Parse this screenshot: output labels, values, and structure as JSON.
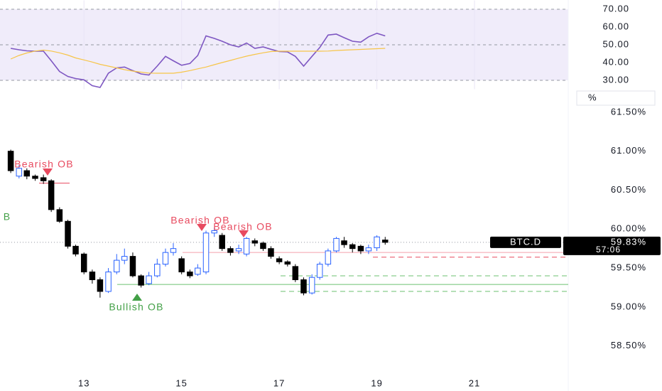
{
  "chart_data": [
    {
      "type": "line",
      "x": [
        11.5,
        11.67,
        11.83,
        12,
        12.17,
        12.33,
        12.5,
        12.67,
        12.83,
        13,
        13.17,
        13.33,
        13.5,
        13.67,
        13.83,
        14,
        14.17,
        14.33,
        14.5,
        14.67,
        14.83,
        15,
        15.17,
        15.33,
        15.5,
        15.67,
        15.83,
        16,
        16.17,
        16.33,
        16.5,
        16.67,
        16.83,
        17,
        17.17,
        17.33,
        17.5,
        17.67,
        17.83,
        18,
        18.17,
        18.33,
        18.5,
        18.67,
        18.83,
        19,
        19.17
      ],
      "series": [
        {
          "color": "#7e57c2",
          "values": [
            48,
            47.2,
            46.6,
            46.4,
            46.4,
            41,
            35,
            32.2,
            31,
            30.3,
            27,
            26,
            34,
            37,
            37.5,
            35.5,
            33.6,
            33,
            38,
            43.5,
            41,
            38.5,
            39.5,
            44,
            55,
            53.6,
            52,
            50,
            48.8,
            51,
            48,
            48.8,
            47.5,
            46.2,
            46,
            43.5,
            38,
            43.5,
            48.5,
            55.5,
            56,
            54,
            52,
            51.5,
            54.5,
            56.5,
            55
          ]
        },
        {
          "color": "#f7c548",
          "values": [
            42,
            44,
            45.4,
            46.5,
            47,
            46.5,
            45.5,
            44.2,
            42.6,
            41.5,
            40.3,
            39,
            38,
            37,
            36,
            35.2,
            34.6,
            34.1,
            34,
            34,
            34,
            34.6,
            35.5,
            36.5,
            37.5,
            38.8,
            40,
            41.2,
            42.5,
            43.6,
            44.6,
            45.5,
            46.2,
            46.4,
            46.4,
            46.4,
            46.4,
            46.4,
            46.4,
            46.5,
            46.8,
            47,
            47.2,
            47.4,
            47.6,
            47.8,
            48
          ]
        }
      ],
      "xlim": [
        11.28,
        22.92
      ],
      "ylim": [
        25,
        75
      ],
      "yticks": [
        {
          "value": 30,
          "label": "30.00"
        },
        {
          "value": 40,
          "label": "40.00"
        },
        {
          "value": 50,
          "label": "50.00"
        },
        {
          "value": 60,
          "label": "60.00"
        },
        {
          "value": 70,
          "label": "70.00"
        }
      ],
      "band": [
        30,
        70
      ],
      "midline": 50,
      "band_color": "#f0ecfa"
    },
    {
      "type": "candlestick",
      "x": [
        11.5,
        11.67,
        11.83,
        12,
        12.17,
        12.33,
        12.5,
        12.67,
        12.83,
        13,
        13.17,
        13.33,
        13.5,
        13.67,
        13.83,
        14,
        14.17,
        14.33,
        14.5,
        14.67,
        14.83,
        15,
        15.17,
        15.33,
        15.5,
        15.67,
        15.83,
        16,
        16.17,
        16.33,
        16.5,
        16.67,
        16.83,
        17,
        17.17,
        17.33,
        17.5,
        17.67,
        17.83,
        18,
        18.17,
        18.33,
        18.5,
        18.67,
        18.83,
        19,
        19.17
      ],
      "open": [
        61.0,
        60.68,
        60.75,
        60.68,
        60.66,
        60.62,
        60.25,
        60.1,
        59.78,
        59.68,
        59.45,
        59.35,
        59.2,
        59.45,
        59.6,
        59.65,
        59.4,
        59.3,
        59.4,
        59.55,
        59.7,
        59.62,
        59.45,
        59.42,
        59.45,
        59.95,
        59.92,
        59.75,
        59.72,
        59.68,
        59.85,
        59.82,
        59.75,
        59.62,
        59.58,
        59.52,
        59.35,
        59.18,
        59.38,
        59.55,
        59.72,
        59.85,
        59.8,
        59.78,
        59.72,
        59.76,
        59.86
      ],
      "high": [
        61.02,
        60.82,
        60.78,
        60.7,
        60.7,
        60.64,
        60.28,
        60.12,
        59.8,
        59.7,
        59.48,
        59.38,
        59.5,
        59.68,
        59.75,
        59.7,
        59.42,
        59.45,
        59.62,
        59.75,
        59.82,
        59.65,
        59.48,
        59.55,
        59.98,
        60.02,
        59.95,
        59.78,
        59.8,
        59.9,
        59.88,
        59.84,
        59.78,
        59.65,
        59.6,
        59.55,
        59.38,
        59.42,
        59.58,
        59.75,
        59.9,
        59.9,
        59.82,
        59.8,
        59.8,
        59.92,
        59.9
      ],
      "low": [
        60.72,
        60.65,
        60.64,
        60.62,
        60.58,
        60.22,
        60.08,
        59.75,
        59.65,
        59.42,
        59.3,
        59.12,
        59.18,
        59.42,
        59.55,
        59.38,
        59.25,
        59.28,
        59.38,
        59.52,
        59.66,
        59.42,
        59.37,
        59.4,
        59.42,
        59.9,
        59.72,
        59.66,
        59.68,
        59.65,
        59.78,
        59.72,
        59.62,
        59.55,
        59.52,
        59.32,
        59.15,
        59.16,
        59.35,
        59.52,
        59.7,
        59.76,
        59.7,
        59.68,
        59.68,
        59.72,
        59.8
      ],
      "close": [
        60.75,
        60.78,
        60.68,
        60.65,
        60.62,
        60.25,
        60.1,
        59.78,
        59.68,
        59.45,
        59.35,
        59.2,
        59.45,
        59.6,
        59.65,
        59.4,
        59.28,
        59.4,
        59.55,
        59.7,
        59.75,
        59.45,
        59.4,
        59.5,
        59.95,
        59.98,
        59.75,
        59.7,
        59.75,
        59.88,
        59.82,
        59.75,
        59.65,
        59.58,
        59.55,
        59.35,
        59.18,
        59.38,
        59.55,
        59.72,
        59.88,
        59.8,
        59.75,
        59.72,
        59.76,
        59.9,
        59.83
      ],
      "up_color": "#2962ff",
      "down_color": "#000000",
      "xlim": [
        11.28,
        22.92
      ],
      "xticks": [
        13,
        15,
        17,
        19,
        21
      ],
      "ylim": [
        58.15,
        61.8
      ],
      "yticks": [
        {
          "value": 58.5,
          "label": "58.50%"
        },
        {
          "value": 59,
          "label": "59.00%"
        },
        {
          "value": 59.5,
          "label": "59.50%"
        },
        {
          "value": 60,
          "label": "60.00%"
        },
        {
          "value": 60.5,
          "label": "60.50%"
        },
        {
          "value": 61,
          "label": "61.00%"
        },
        {
          "value": 61.5,
          "label": "61.50%"
        }
      ],
      "axis_unit": "%",
      "levels": [
        {
          "value": 60.59,
          "color": "#e84a5f",
          "dash": false
        },
        {
          "value": 59.7,
          "color": "#f4a0ab",
          "dash": false
        },
        {
          "value": 59.64,
          "color": "#e84a5f",
          "dash": true
        },
        {
          "value": 59.4,
          "color": "#6cc070",
          "dash": true
        },
        {
          "value": 59.29,
          "color": "#6cc070",
          "dash": false
        },
        {
          "value": 59.2,
          "color": "#6cc070",
          "dash": true
        }
      ],
      "annotations": [
        {
          "text": "Bearish OB",
          "color": "#e84a5f"
        },
        {
          "text": "Bearish OB",
          "color": "#e84a5f"
        },
        {
          "text": "Bearish OB",
          "color": "#e84a5f"
        },
        {
          "text": "Bullish OB",
          "color": "#43a047"
        },
        {
          "text": "B",
          "color": "#43a047"
        }
      ],
      "symbol": "BTC.D",
      "last_price": {
        "value": 59.83,
        "label": "59.83%"
      },
      "countdown": "57:06"
    }
  ]
}
